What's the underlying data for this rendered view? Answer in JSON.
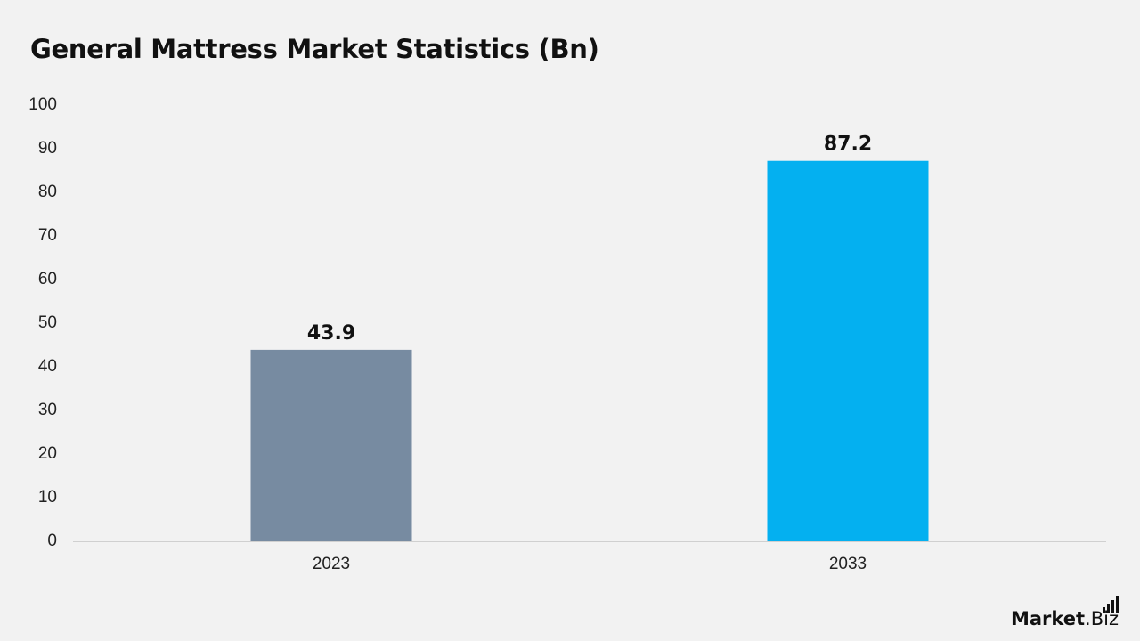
{
  "title": "General Mattress Market Statistics (Bn)",
  "chart_data": {
    "type": "bar",
    "categories": [
      "2023",
      "2033"
    ],
    "values": [
      43.9,
      87.2
    ],
    "data_labels": [
      "43.9",
      "87.2"
    ],
    "bar_colors": [
      "#778ba1",
      "#04b0f0"
    ],
    "title": "General Mattress Market Statistics (Bn)",
    "xlabel": "",
    "ylabel": "",
    "ylim": [
      0,
      100
    ],
    "yticks": [
      "0",
      "10",
      "20",
      "30",
      "40",
      "50",
      "60",
      "70",
      "80",
      "90",
      "100"
    ],
    "grid": false,
    "legend": "none"
  },
  "logo": {
    "bold": "Market",
    "light": ".Biz"
  }
}
